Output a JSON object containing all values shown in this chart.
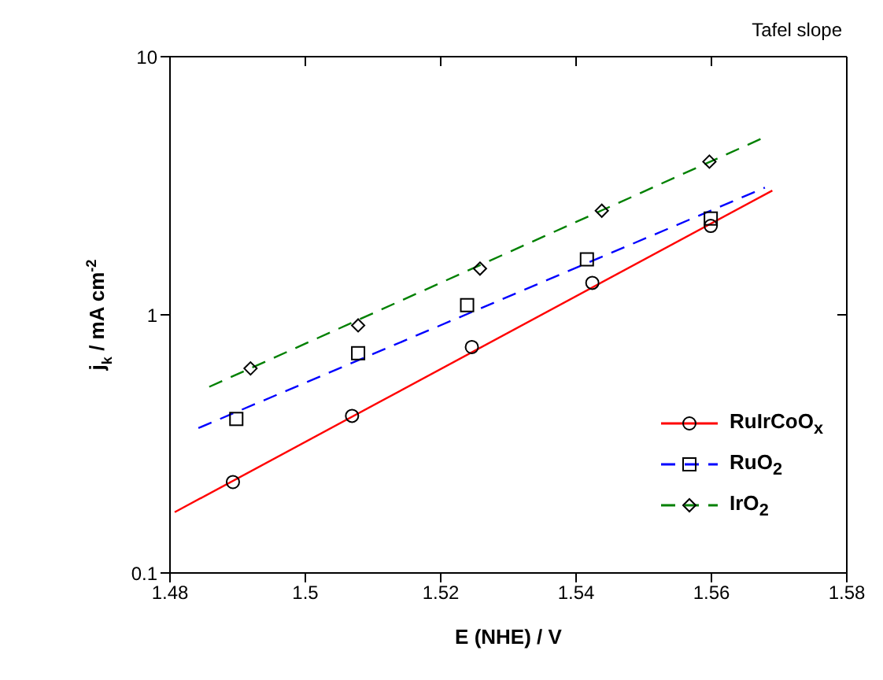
{
  "chart_data": {
    "type": "scatter",
    "title": "Tafel slope",
    "xlabel": "E (NHE) / V",
    "ylabel": "j$_{k}$ / mA cm$^{-2}$",
    "log": "y",
    "xlim": [
      1.48,
      1.58
    ],
    "xticks": [
      1.48,
      1.5,
      1.52,
      1.54,
      1.56,
      1.58
    ],
    "ylim": [
      0.1,
      10
    ],
    "yticks": [
      0.1,
      1,
      10
    ],
    "grid": false,
    "legend": "bottom right",
    "tick_labels": "xy",
    "series": [
      {
        "name": "RuIrCoO$_{x}$",
        "type": "line",
        "color": "#ff0000",
        "line_style": "solid",
        "marker": "none",
        "x": [
          1.4807,
          1.569
        ],
        "values": [
          0.172,
          3.03
        ]
      },
      {
        "color": "#000000",
        "marker": "circle",
        "x": [
          1.4893,
          1.5069,
          1.5246,
          1.5424,
          1.5599
        ],
        "values": [
          0.225,
          0.406,
          0.75,
          1.33,
          2.21
        ]
      },
      {
        "name": "RuO$_{2}$",
        "type": "line",
        "color": "#0000ff",
        "line_style": "dashed",
        "marker": "none",
        "x": [
          1.4842,
          1.5679
        ],
        "values": [
          0.364,
          3.11
        ]
      },
      {
        "color": "#000000",
        "marker": "square",
        "x": [
          1.4898,
          1.5078,
          1.5239,
          1.5416,
          1.5599
        ],
        "values": [
          0.395,
          0.71,
          1.09,
          1.64,
          2.36
        ]
      },
      {
        "name": "IrO$_{2}$",
        "type": "line",
        "color": "#008000",
        "line_style": "dashed",
        "marker": "none",
        "x": [
          1.4858,
          1.5679
        ],
        "values": [
          0.526,
          4.88
        ]
      },
      {
        "color": "#000000",
        "marker": "diamond",
        "x": [
          1.4919,
          1.5078,
          1.5258,
          1.5438,
          1.5597
        ],
        "values": [
          0.62,
          0.91,
          1.51,
          2.53,
          3.92
        ]
      }
    ]
  }
}
